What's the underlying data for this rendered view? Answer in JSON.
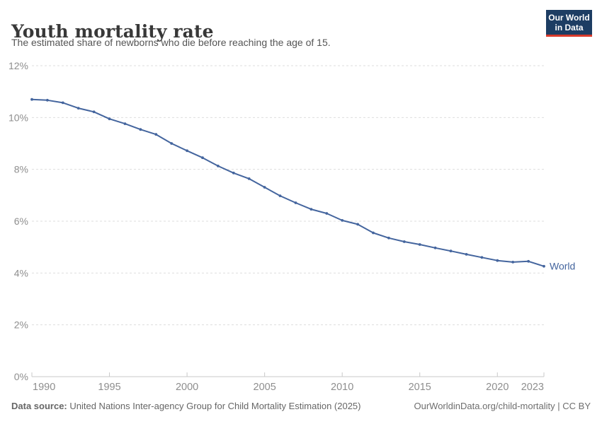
{
  "header": {
    "title": "Youth mortality rate",
    "subtitle": "The estimated share of newborns who die before reaching the age of 15."
  },
  "logo": {
    "line1": "Our World",
    "line2": "in Data",
    "bg_color": "#1d3d63",
    "stripe_color": "#d93a2b"
  },
  "footer": {
    "source_label": "Data source:",
    "source_text": " United Nations Inter-agency Group for Child Mortality Estimation (2025)",
    "credit": "OurWorldinData.org/child-mortality | CC BY"
  },
  "chart_data": {
    "type": "line",
    "title": "Youth mortality rate",
    "xlabel": "",
    "ylabel": "",
    "xlim": [
      1990,
      2023
    ],
    "ylim": [
      0,
      12
    ],
    "grid": "horizontal-dashed",
    "legend_position": "end-of-line-label",
    "x_axis": {
      "ticks": [
        {
          "value": 1990,
          "label": "1990"
        },
        {
          "value": 1995,
          "label": "1995"
        },
        {
          "value": 2000,
          "label": "2000"
        },
        {
          "value": 2005,
          "label": "2005"
        },
        {
          "value": 2010,
          "label": "2010"
        },
        {
          "value": 2015,
          "label": "2015"
        },
        {
          "value": 2020,
          "label": "2020"
        },
        {
          "value": 2023,
          "label": "2023"
        }
      ]
    },
    "y_axis": {
      "ticks": [
        {
          "value": 0,
          "label": "0%"
        },
        {
          "value": 2,
          "label": "2%"
        },
        {
          "value": 4,
          "label": "4%"
        },
        {
          "value": 6,
          "label": "6%"
        },
        {
          "value": 8,
          "label": "8%"
        },
        {
          "value": 10,
          "label": "10%"
        },
        {
          "value": 12,
          "label": "12%"
        }
      ]
    },
    "series": [
      {
        "name": "World",
        "color": "#44659e",
        "unit": "%",
        "x": [
          1990,
          1991,
          1992,
          1993,
          1994,
          1995,
          1996,
          1997,
          1998,
          1999,
          2000,
          2001,
          2002,
          2003,
          2004,
          2005,
          2006,
          2007,
          2008,
          2009,
          2010,
          2011,
          2012,
          2013,
          2014,
          2015,
          2016,
          2017,
          2018,
          2019,
          2020,
          2021,
          2022,
          2023
        ],
        "values": [
          10.7,
          10.67,
          10.57,
          10.36,
          10.22,
          9.95,
          9.76,
          9.54,
          9.35,
          9.0,
          8.72,
          8.45,
          8.13,
          7.86,
          7.64,
          7.31,
          6.98,
          6.71,
          6.46,
          6.3,
          6.03,
          5.88,
          5.55,
          5.35,
          5.21,
          5.1,
          4.97,
          4.85,
          4.72,
          4.6,
          4.48,
          4.42,
          4.45,
          4.26
        ]
      }
    ]
  }
}
